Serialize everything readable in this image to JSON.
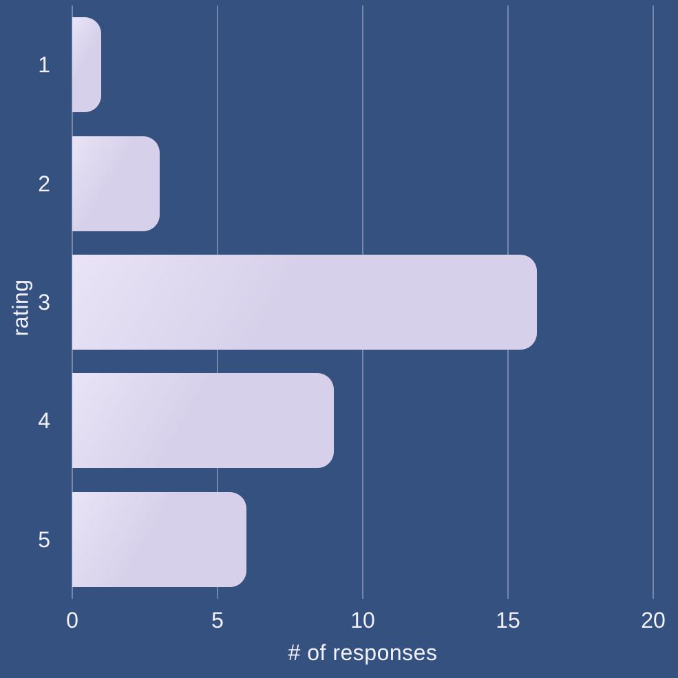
{
  "chart_data": {
    "type": "bar",
    "orientation": "horizontal",
    "title": "",
    "xlabel": "# of responses",
    "ylabel": "rating",
    "categories": [
      "1",
      "2",
      "3",
      "4",
      "5"
    ],
    "values": [
      1,
      3,
      16,
      9,
      6
    ],
    "xlim": [
      0,
      20
    ],
    "x_ticks": [
      0,
      5,
      10,
      15,
      20
    ],
    "grid": "vertical",
    "legend": "none",
    "colors": {
      "background": "#345180",
      "bar": "#d6d0ea",
      "bar_highlight": "#eae4f7",
      "text": "#f2f1fb",
      "gridline": "rgba(240,242,252,0.35)"
    }
  }
}
